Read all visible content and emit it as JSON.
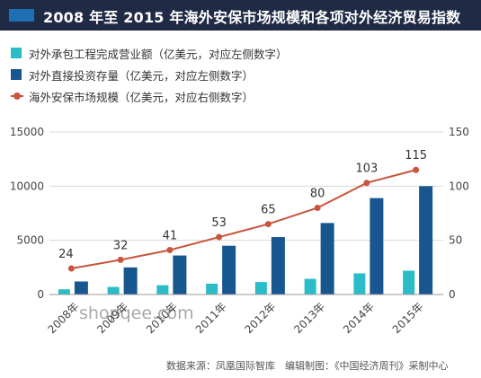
{
  "title": "2008 年至 2015 年海外安保市场规模和各项对外经济贸易指数",
  "source_note": "数据来源：凤凰国际智库　编辑制图：《中国经济周刊》采制中心",
  "watermark": "shopqee.com",
  "colors": {
    "contracting": "#2bbdc7",
    "investment": "#17568f",
    "security": "#c8553d",
    "title_bg": "#1f2a44",
    "title_accent": "#1f6fb5"
  },
  "chart_data": {
    "type": "bar",
    "categories": [
      "2008年",
      "2009年",
      "2010年",
      "2011年",
      "2012年",
      "2013年",
      "2014年",
      "2015年"
    ],
    "series": [
      {
        "name": "对外承包工程完成营业额（亿美元，对应左侧数字）",
        "type": "bar",
        "axis": "left",
        "values": [
          480,
          700,
          860,
          1000,
          1150,
          1450,
          1950,
          2200
        ]
      },
      {
        "name": "对外直接投资存量（亿美元，对应左侧数字）",
        "type": "bar",
        "axis": "left",
        "values": [
          1200,
          2500,
          3600,
          4500,
          5300,
          6600,
          8900,
          10000
        ]
      },
      {
        "name": "海外安保市场规模（亿美元，对应右侧数字）",
        "type": "line",
        "axis": "right",
        "values": [
          24,
          32,
          41,
          53,
          65,
          80,
          103,
          115
        ],
        "labels": [
          "24",
          "32",
          "41",
          "53",
          "65",
          "80",
          "103",
          "115"
        ]
      }
    ],
    "left_axis": {
      "min": 0,
      "max": 15000,
      "ticks": [
        "0",
        "5000",
        "10000",
        "15000"
      ],
      "tick_values": [
        0,
        5000,
        10000,
        15000
      ]
    },
    "right_axis": {
      "min": 0,
      "max": 150,
      "ticks": [
        "0",
        "50",
        "100",
        "150"
      ],
      "tick_values": [
        0,
        50,
        100,
        150
      ]
    },
    "grid": true,
    "legend_position": "top-left"
  }
}
